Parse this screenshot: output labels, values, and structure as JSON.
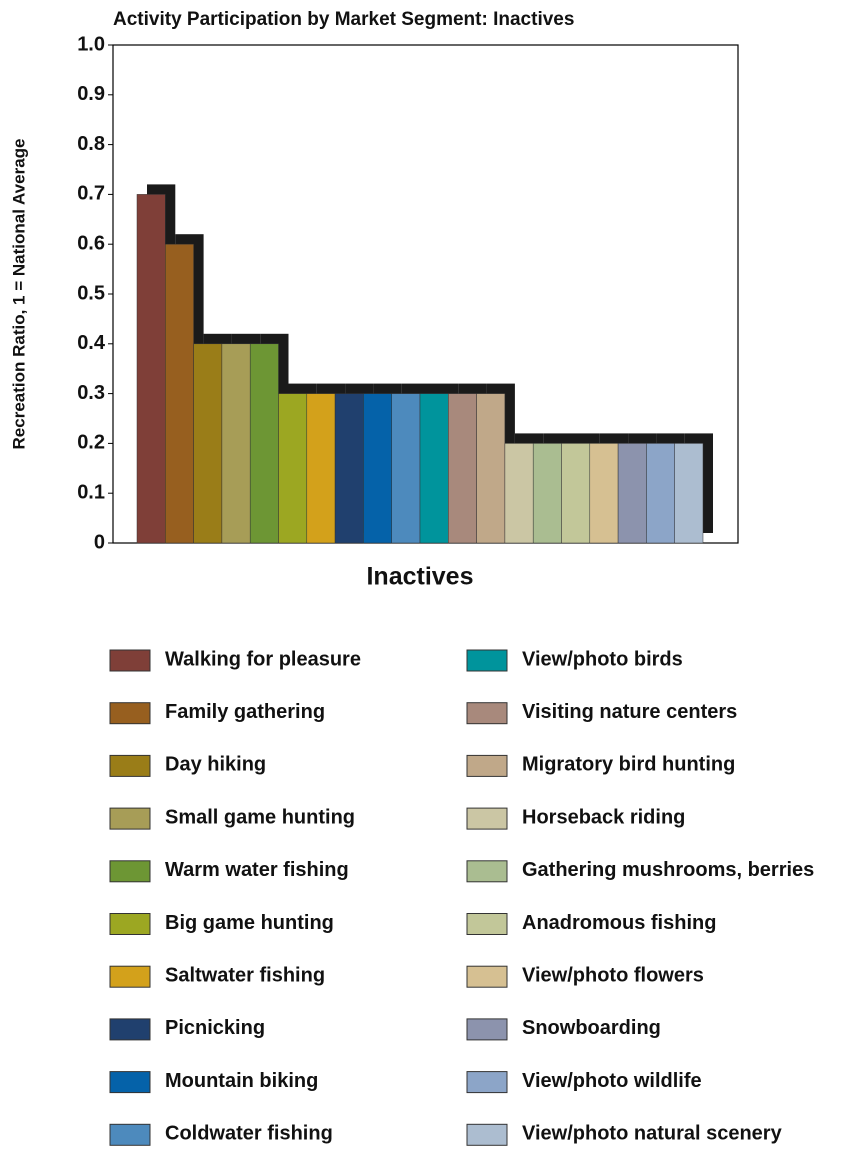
{
  "chart_data": {
    "type": "bar",
    "title": "Activity Participation by Market Segment: Inactives",
    "ylabel": "Recreation Ratio, 1 = National Average",
    "categories": [
      "Inactives"
    ],
    "ylim": [
      0,
      1
    ],
    "yticks": [
      0,
      0.1,
      0.2,
      0.3,
      0.4,
      0.5,
      0.6,
      0.7,
      0.8,
      0.9,
      {
        "value": 1,
        "label": "1.0"
      }
    ],
    "legend": "bottom",
    "series": [
      {
        "name": "Walking for pleasure",
        "color": "#7f3f38",
        "values": [
          0.7
        ]
      },
      {
        "name": "Family gathering",
        "color": "#975f1f",
        "values": [
          0.6
        ]
      },
      {
        "name": "Day hiking",
        "color": "#9a7d18",
        "values": [
          0.4
        ]
      },
      {
        "name": "Small game hunting",
        "color": "#a79d57",
        "values": [
          0.4
        ]
      },
      {
        "name": "Warm water fishing",
        "color": "#6d9634",
        "values": [
          0.4
        ]
      },
      {
        "name": "Big game hunting",
        "color": "#9ca722",
        "values": [
          0.3
        ]
      },
      {
        "name": "Saltwater fishing",
        "color": "#d3a11b",
        "values": [
          0.3
        ]
      },
      {
        "name": "Picnicking",
        "color": "#20406e",
        "values": [
          0.3
        ]
      },
      {
        "name": "Mountain biking",
        "color": "#0562a9",
        "values": [
          0.3
        ]
      },
      {
        "name": "Coldwater fishing",
        "color": "#4d8abd",
        "values": [
          0.3
        ]
      },
      {
        "name": "View/photo birds",
        "color": "#00949c",
        "values": [
          0.3
        ]
      },
      {
        "name": "Visiting nature centers",
        "color": "#a8897c",
        "values": [
          0.3
        ]
      },
      {
        "name": "Migratory bird hunting",
        "color": "#c0a889",
        "values": [
          0.3
        ]
      },
      {
        "name": "Horseback riding",
        "color": "#cbc6a4",
        "values": [
          0.2
        ]
      },
      {
        "name": "Gathering mushrooms, berries",
        "color": "#aabd91",
        "values": [
          0.2
        ]
      },
      {
        "name": "Anadromous fishing",
        "color": "#c2c799",
        "values": [
          0.2
        ]
      },
      {
        "name": "View/photo flowers",
        "color": "#d6c092",
        "values": [
          0.2
        ]
      },
      {
        "name": "Snowboarding",
        "color": "#8c93ad",
        "values": [
          0.2
        ]
      },
      {
        "name": "View/photo wildlife",
        "color": "#8ca5c8",
        "values": [
          0.2
        ]
      },
      {
        "name": "View/photo natural scenery",
        "color": "#acbdd0",
        "values": [
          0.2
        ]
      }
    ]
  }
}
